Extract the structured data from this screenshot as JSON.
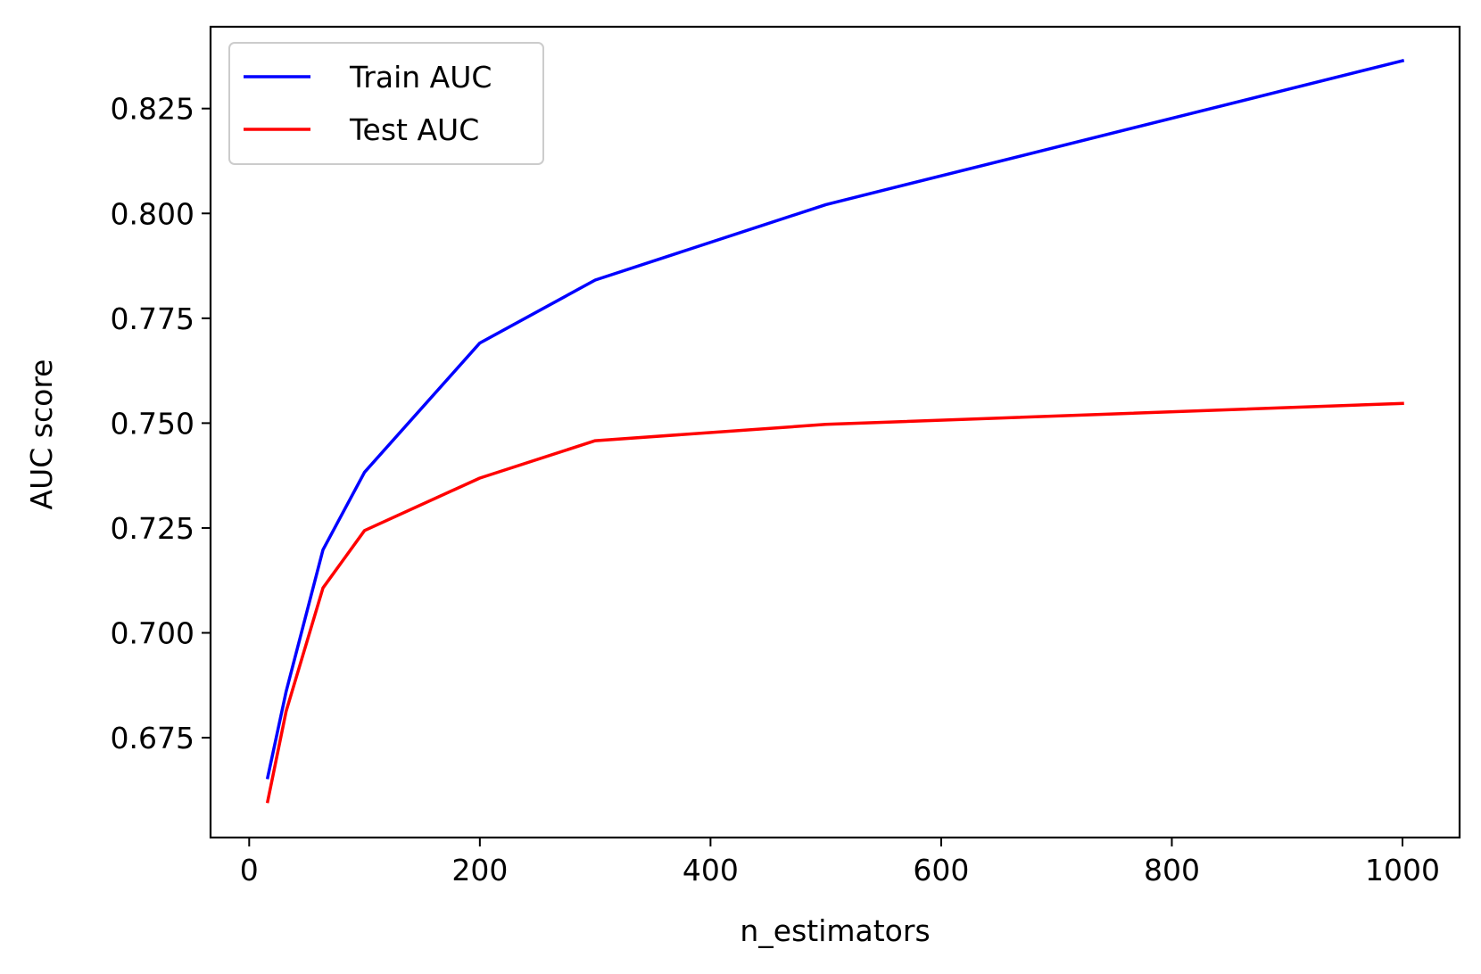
{
  "chart_data": {
    "type": "line",
    "title": "",
    "xlabel": "n_estimators",
    "ylabel": "AUC score",
    "x": [
      16,
      32,
      64,
      100,
      200,
      300,
      500,
      1000
    ],
    "series": [
      {
        "name": "Train AUC",
        "color": "#0000ff",
        "values": [
          0.6655,
          0.686,
          0.7198,
          0.7383,
          0.7691,
          0.7841,
          0.8021,
          0.8364
        ]
      },
      {
        "name": "Test AUC",
        "color": "#ff0000",
        "values": [
          0.6598,
          0.6813,
          0.7107,
          0.7244,
          0.7369,
          0.7458,
          0.7497,
          0.7547
        ]
      }
    ],
    "xlim": [
      -33.5,
      1049.5
    ],
    "ylim": [
      0.6512,
      0.8445
    ],
    "xticks": [
      0,
      200,
      400,
      600,
      800,
      1000
    ],
    "xtick_labels": [
      "0",
      "200",
      "400",
      "600",
      "800",
      "1000"
    ],
    "yticks": [
      0.675,
      0.7,
      0.725,
      0.75,
      0.775,
      0.8,
      0.825
    ],
    "ytick_labels": [
      "0.675",
      "0.700",
      "0.725",
      "0.750",
      "0.775",
      "0.800",
      "0.825"
    ],
    "grid": false,
    "legend_position": "upper-left"
  }
}
